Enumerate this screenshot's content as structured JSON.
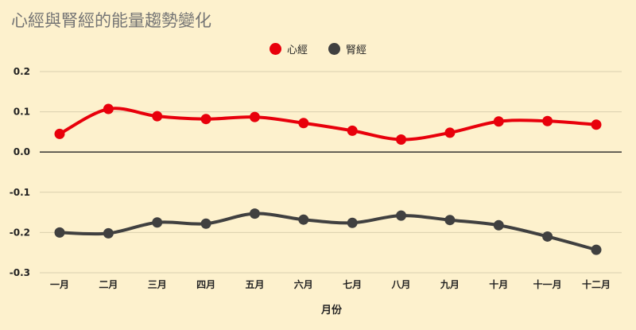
{
  "title": "心經與腎經的能量趨勢變化",
  "colors": {
    "background": "#fdf1cd",
    "heart": "#e8000b",
    "kidney": "#404040",
    "grid": "#d9cfae",
    "zero": "#222222"
  },
  "chart_data": {
    "type": "line",
    "title": "心經與腎經的能量趨勢變化",
    "xlabel": "月份",
    "ylabel": "",
    "categories": [
      "一月",
      "二月",
      "三月",
      "四月",
      "五月",
      "六月",
      "七月",
      "八月",
      "九月",
      "十月",
      "十一月",
      "十二月"
    ],
    "yticks": [
      0.2,
      0.1,
      0.0,
      -0.1,
      -0.2,
      -0.3
    ],
    "ytick_labels": [
      "0.2",
      "0.1",
      "0.0",
      "-0.1",
      "-0.2",
      "-0.3"
    ],
    "ylim": [
      -0.3,
      0.2
    ],
    "legend_position": "top",
    "grid": true,
    "series": [
      {
        "name": "心經",
        "color": "#e8000b",
        "values": [
          0.045,
          0.107,
          0.089,
          0.082,
          0.087,
          0.072,
          0.053,
          0.031,
          0.048,
          0.076,
          0.077,
          0.068
        ]
      },
      {
        "name": "腎經",
        "color": "#404040",
        "values": [
          -0.2,
          -0.202,
          -0.175,
          -0.178,
          -0.153,
          -0.168,
          -0.176,
          -0.158,
          -0.169,
          -0.182,
          -0.21,
          -0.243
        ]
      }
    ]
  }
}
